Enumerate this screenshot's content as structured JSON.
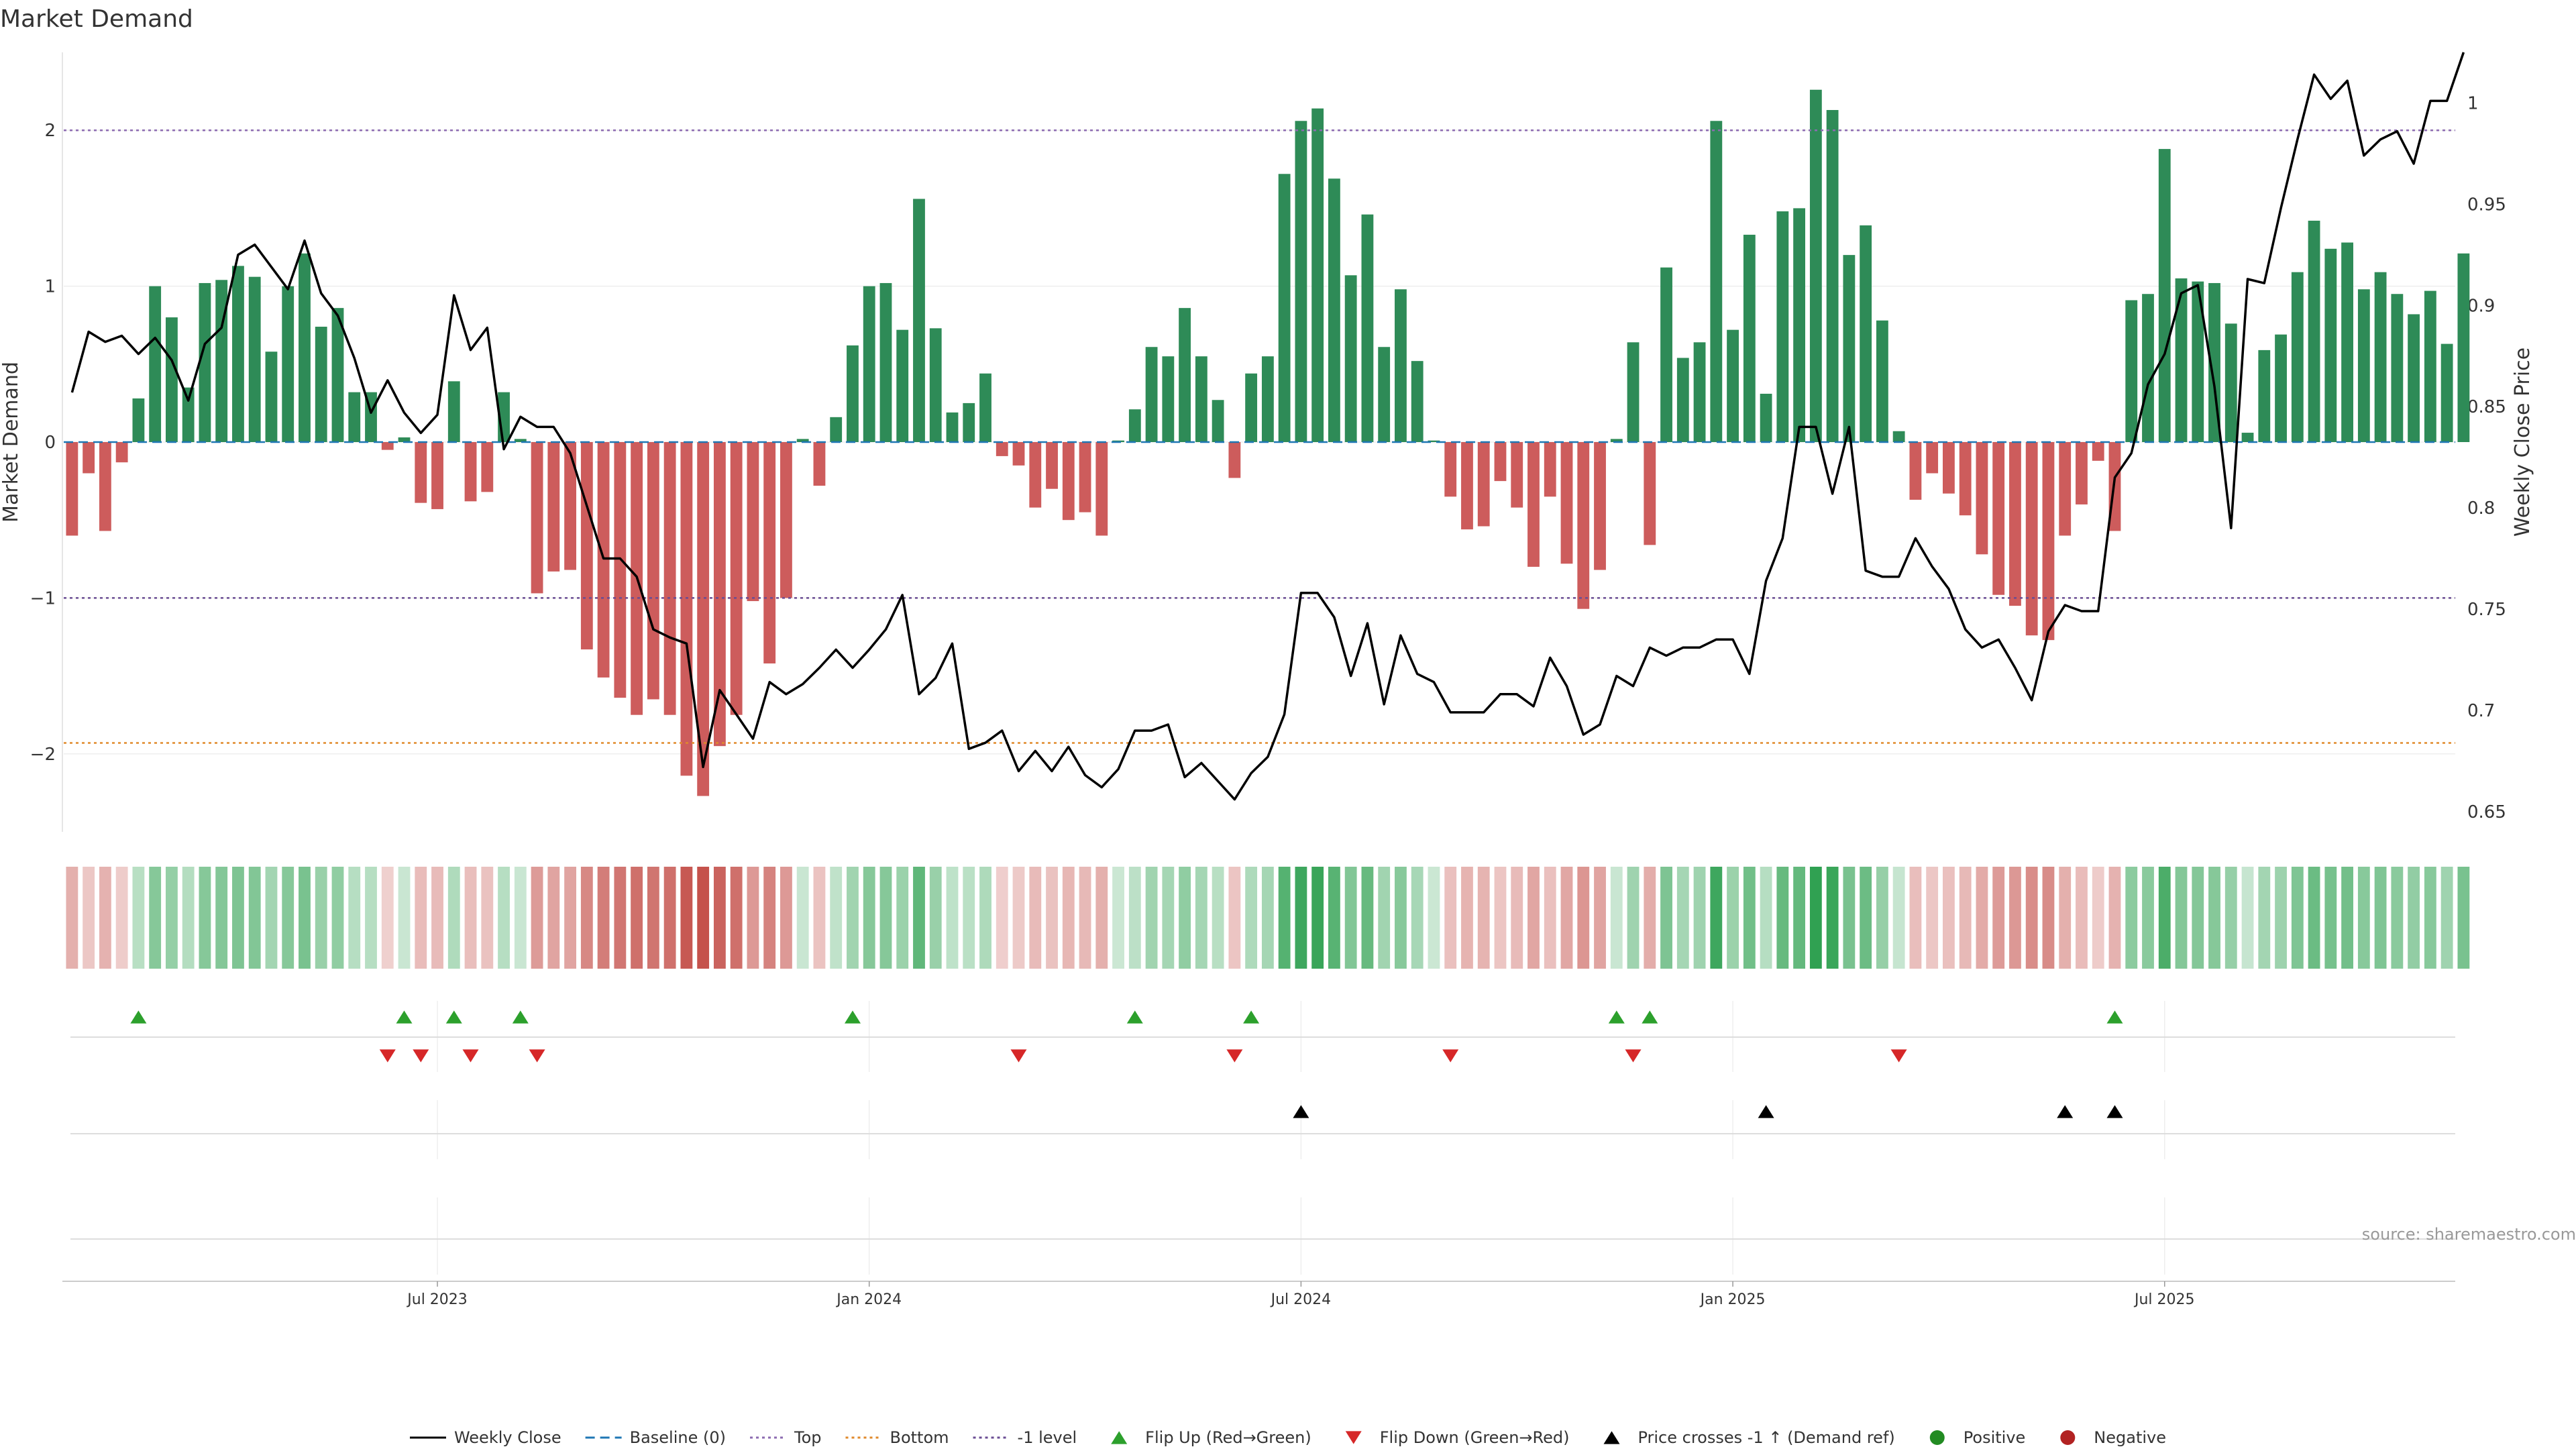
{
  "chart_data": {
    "type": "bar",
    "title": "Market Demand",
    "ylabel": "Market Demand",
    "y2label": "Weekly Close Price",
    "ylim": [
      -2.5,
      2.5
    ],
    "y2lim": [
      0.64,
      1.025
    ],
    "yticks": [
      "2",
      "1",
      "0",
      "−1",
      "−2"
    ],
    "yticks_values": [
      2,
      1,
      0,
      -1,
      -2
    ],
    "y2ticks": [
      "1",
      "0.95",
      "0.9",
      "0.85",
      "0.8",
      "0.75",
      "0.7",
      "0.65"
    ],
    "y2ticks_values": [
      1,
      0.95,
      0.9,
      0.85,
      0.8,
      0.75,
      0.7,
      0.65
    ],
    "x_range": [
      0,
      144
    ],
    "xticks": [
      {
        "label": "Jul 2023",
        "week": 22
      },
      {
        "label": "Jan 2024",
        "week": 48
      },
      {
        "label": "Jul 2024",
        "week": 74
      },
      {
        "label": "Jan 2025",
        "week": 100
      },
      {
        "label": "Jul 2025",
        "week": 126
      }
    ],
    "reference_lines": {
      "top": 2.0,
      "bottom": -1.93,
      "minus_one": -1.0,
      "baseline": 0.0
    },
    "demand": [
      -0.6,
      -0.2,
      -0.57,
      -0.13,
      0.28,
      1.0,
      0.8,
      0.35,
      1.02,
      1.04,
      1.13,
      1.06,
      0.58,
      1.0,
      1.21,
      0.74,
      0.86,
      0.32,
      0.32,
      -0.05,
      0.03,
      -0.39,
      -0.43,
      0.39,
      -0.38,
      -0.32,
      0.32,
      0.02,
      -0.97,
      -0.83,
      -0.82,
      -1.33,
      -1.51,
      -1.64,
      -1.75,
      -1.65,
      -1.75,
      -2.14,
      -2.27,
      -1.95,
      -1.75,
      -1.02,
      -1.42,
      -1.0,
      0.02,
      -0.28,
      0.16,
      0.62,
      1.0,
      1.02,
      0.72,
      1.56,
      0.73,
      0.19,
      0.25,
      0.44,
      -0.09,
      -0.15,
      -0.42,
      -0.3,
      -0.5,
      -0.45,
      -0.6,
      0.01,
      0.21,
      0.61,
      0.55,
      0.86,
      0.55,
      0.27,
      -0.23,
      0.44,
      0.55,
      1.72,
      2.06,
      2.14,
      1.69,
      1.07,
      1.46,
      0.61,
      0.98,
      0.52,
      0.01,
      -0.35,
      -0.56,
      -0.54,
      -0.25,
      -0.42,
      -0.8,
      -0.35,
      -0.78,
      -1.07,
      -0.82,
      0.02,
      0.64,
      -0.66,
      1.12,
      0.54,
      0.64,
      2.06,
      0.72,
      1.33,
      0.31,
      1.48,
      1.5,
      2.26,
      2.13,
      1.2,
      1.39,
      0.78,
      0.07,
      -0.37,
      -0.2,
      -0.33,
      -0.47,
      -0.72,
      -0.98,
      -1.05,
      -1.24,
      -1.27,
      -0.6,
      -0.4,
      -0.12,
      -0.57,
      0.91,
      0.95,
      1.88,
      1.05,
      1.03,
      1.02,
      0.76,
      0.06,
      0.59,
      0.69,
      1.09,
      1.42,
      1.24,
      1.28,
      0.98,
      1.09,
      0.95,
      0.82,
      0.97,
      0.63,
      1.21
    ],
    "weekly_close": [
      0.857,
      0.887,
      0.882,
      0.885,
      0.876,
      0.884,
      0.873,
      0.853,
      0.881,
      0.889,
      0.925,
      0.93,
      0.919,
      0.908,
      0.932,
      0.906,
      0.895,
      0.874,
      0.847,
      0.863,
      0.847,
      0.837,
      0.846,
      0.905,
      0.878,
      0.889,
      0.829,
      0.845,
      0.84,
      0.84,
      0.827,
      0.801,
      0.775,
      0.775,
      0.766,
      0.74,
      0.736,
      0.733,
      0.672,
      0.71,
      0.698,
      0.686,
      0.714,
      0.708,
      0.713,
      0.721,
      0.73,
      0.721,
      0.73,
      0.74,
      0.757,
      0.708,
      0.716,
      0.733,
      0.681,
      0.684,
      0.69,
      0.67,
      0.68,
      0.67,
      0.682,
      0.668,
      0.662,
      0.671,
      0.69,
      0.69,
      0.693,
      0.667,
      0.674,
      0.665,
      0.656,
      0.669,
      0.677,
      0.698,
      0.758,
      0.758,
      0.746,
      0.717,
      0.743,
      0.703,
      0.737,
      0.718,
      0.714,
      0.699,
      0.699,
      0.699,
      0.708,
      0.708,
      0.702,
      0.726,
      0.712,
      0.688,
      0.693,
      0.717,
      0.712,
      0.731,
      0.727,
      0.731,
      0.731,
      0.735,
      0.735,
      0.718,
      0.764,
      0.785,
      0.84,
      0.84,
      0.807,
      0.84,
      0.769,
      0.766,
      0.766,
      0.785,
      0.771,
      0.76,
      0.74,
      0.731,
      0.735,
      0.721,
      0.705,
      0.739,
      0.752,
      0.749,
      0.749,
      0.815,
      0.827,
      0.861,
      0.876,
      0.906,
      0.91,
      0.86,
      0.79,
      0.913,
      0.911,
      0.948,
      0.982,
      1.014,
      1.002,
      1.011,
      0.974,
      0.982,
      0.986,
      0.97,
      1.001,
      1.001,
      1.025
    ],
    "flip_up_weeks": [
      4,
      20,
      23,
      27,
      47,
      64,
      71,
      93,
      95,
      123
    ],
    "flip_down_weeks": [
      19,
      21,
      24,
      28,
      57,
      70,
      83,
      94,
      110
    ],
    "price_cross_weeks": [
      74,
      102,
      120,
      123
    ]
  },
  "legend": [
    {
      "label": "Weekly Close",
      "kind": "line",
      "color": "#000000"
    },
    {
      "label": "Baseline (0)",
      "kind": "dash",
      "color": "#1f77b4"
    },
    {
      "label": "Top",
      "kind": "dot",
      "color": "#8c6bb1"
    },
    {
      "label": "Bottom",
      "kind": "dot",
      "color": "#e08a2c"
    },
    {
      "label": "-1 level",
      "kind": "dot",
      "color": "#6a4c93"
    },
    {
      "label": "Flip Up (Red→Green)",
      "kind": "tri-up",
      "color": "#2ca02c"
    },
    {
      "label": "Flip Down (Green→Red)",
      "kind": "tri-down",
      "color": "#d62728"
    },
    {
      "label": "Price crosses -1 ↑ (Demand ref)",
      "kind": "tri-up",
      "color": "#000000"
    },
    {
      "label": "Positive",
      "kind": "circle",
      "color": "#228b22"
    },
    {
      "label": "Negative",
      "kind": "circle",
      "color": "#b22222"
    }
  ],
  "source": "source: sharemaestro.com",
  "colors": {
    "positive_bar": "#2e8b57",
    "negative_bar": "#cd5c5c",
    "grid": "#eeeeee",
    "top_line": "#8c6bb1",
    "bottom_line": "#e08a2c",
    "minus_one_line": "#6a4c93",
    "baseline": "#1f77b4"
  }
}
